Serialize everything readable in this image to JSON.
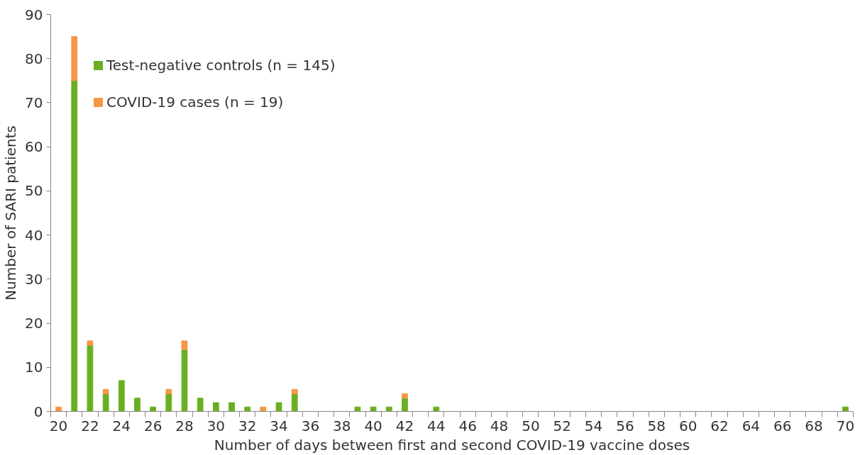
{
  "chart_data": {
    "type": "bar",
    "stacked": true,
    "xlabel": "Number of days between first and second COVID-19 vaccine doses",
    "ylabel": "Number of SARI patients",
    "categories": [
      "20",
      null,
      "22",
      null,
      "24",
      null,
      "26",
      null,
      "28",
      null,
      "30",
      null,
      "32",
      null,
      "34",
      null,
      "36",
      null,
      "38",
      null,
      "40",
      null,
      "42",
      null,
      "44",
      null,
      "46",
      null,
      "48",
      null,
      "50",
      null,
      "52",
      null,
      "54",
      null,
      "56",
      null,
      "58",
      null,
      "60",
      null,
      "62",
      null,
      "64",
      null,
      "66",
      null,
      "68",
      null,
      "70"
    ],
    "series": [
      {
        "name": "Test-negative controls (n = 145)",
        "color": "#6aaf23",
        "values": [
          0,
          75,
          15,
          4,
          7,
          3,
          1,
          4,
          14,
          3,
          2,
          2,
          1,
          0,
          2,
          4,
          0,
          0,
          0,
          1,
          1,
          1,
          3,
          0,
          1,
          0,
          0,
          0,
          0,
          0,
          0,
          0,
          0,
          0,
          0,
          0,
          0,
          0,
          0,
          0,
          0,
          0,
          0,
          0,
          0,
          0,
          0,
          0,
          0,
          0,
          1
        ]
      },
      {
        "name": "COVID-19 cases (n = 19)",
        "color": "#f79646",
        "values": [
          1,
          10,
          1,
          1,
          0,
          0,
          0,
          1,
          2,
          0,
          0,
          0,
          0,
          1,
          0,
          1,
          0,
          0,
          0,
          0,
          0,
          0,
          1,
          0,
          0,
          0,
          0,
          0,
          0,
          0,
          0,
          0,
          0,
          0,
          0,
          0,
          0,
          0,
          0,
          0,
          0,
          0,
          0,
          0,
          0,
          0,
          0,
          0,
          0,
          0,
          0
        ]
      }
    ],
    "ylim": [
      0,
      90
    ],
    "yticks": [
      0,
      10,
      20,
      30,
      40,
      50,
      60,
      70,
      80,
      90
    ],
    "grid": false,
    "legend": "top left"
  }
}
